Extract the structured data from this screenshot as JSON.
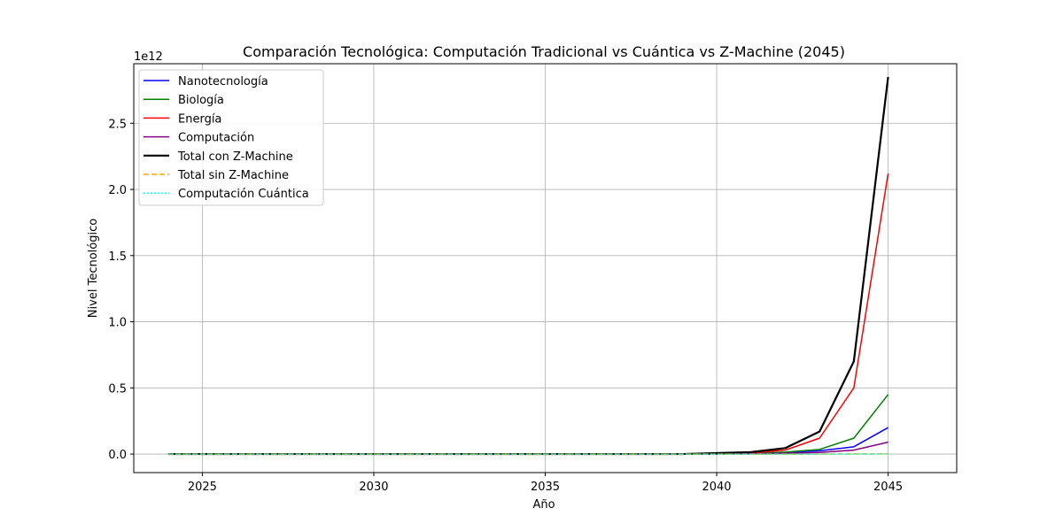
{
  "chart_data": {
    "type": "line",
    "title": "Comparación Tecnológica: Computación Tradicional vs Cuántica vs Z-Machine (2045)",
    "xlabel": "Año",
    "ylabel": "Nivel Tecnológico",
    "y_offset_label": "1e12",
    "xlim": [
      2023,
      2047
    ],
    "ylim": [
      -0.14,
      2.95
    ],
    "y_scale_note": "values in units of 1e12",
    "xticks": [
      2025,
      2030,
      2035,
      2040,
      2045
    ],
    "xtick_labels": [
      "2025",
      "2030",
      "2035",
      "2040",
      "2045"
    ],
    "yticks": [
      0.0,
      0.5,
      1.0,
      1.5,
      2.0,
      2.5
    ],
    "ytick_labels": [
      "0.0",
      "0.5",
      "1.0",
      "1.5",
      "2.0",
      "2.5"
    ],
    "grid": true,
    "legend_position": "upper-left",
    "x": [
      2024,
      2025,
      2026,
      2027,
      2028,
      2029,
      2030,
      2031,
      2032,
      2033,
      2034,
      2035,
      2036,
      2037,
      2038,
      2039,
      2040,
      2041,
      2042,
      2043,
      2044,
      2045
    ],
    "series": [
      {
        "name": "Nanotecnología",
        "color": "#0000ff",
        "dash": "solid",
        "width": 1.5,
        "values": [
          0,
          0,
          0,
          0,
          0,
          0,
          0,
          0,
          0,
          0,
          0,
          0,
          0,
          0,
          0,
          0,
          0.001,
          0.004,
          0.012,
          0.025,
          0.055,
          0.2
        ]
      },
      {
        "name": "Biología",
        "color": "#008000",
        "dash": "solid",
        "width": 1.5,
        "values": [
          0,
          0,
          0,
          0,
          0,
          0,
          0,
          0,
          0,
          0,
          0,
          0,
          0,
          0,
          0,
          0,
          0.002,
          0.006,
          0.015,
          0.035,
          0.12,
          0.45
        ]
      },
      {
        "name": "Energía",
        "color": "#ff0000",
        "dash": "solid",
        "width": 1.5,
        "values": [
          0,
          0,
          0,
          0,
          0,
          0,
          0,
          0,
          0,
          0,
          0,
          0,
          0,
          0,
          0,
          0,
          0.003,
          0.01,
          0.03,
          0.12,
          0.5,
          2.12
        ]
      },
      {
        "name": "Computación",
        "color": "#800080",
        "dash": "solid",
        "width": 1.5,
        "values": [
          0,
          0,
          0,
          0,
          0,
          0,
          0,
          0,
          0,
          0,
          0,
          0,
          0,
          0,
          0,
          0,
          0.001,
          0.002,
          0.006,
          0.012,
          0.03,
          0.09
        ]
      },
      {
        "name": "Total con Z-Machine",
        "color": "#000000",
        "dash": "solid",
        "width": 2.2,
        "values": [
          0,
          0,
          0,
          0,
          0,
          0,
          0,
          0,
          0,
          0,
          0,
          0,
          0,
          0,
          0,
          0,
          0.007,
          0.015,
          0.045,
          0.17,
          0.7,
          2.85
        ]
      },
      {
        "name": "Total sin Z-Machine",
        "color": "#ffa500",
        "dash": "dashed",
        "width": 1.5,
        "values": [
          0,
          0,
          0,
          0,
          0,
          0,
          0,
          0,
          0,
          0,
          0,
          0,
          0,
          0,
          0,
          0,
          0,
          0,
          0,
          0,
          0.001,
          0.002
        ]
      },
      {
        "name": "Computación Cuántica",
        "color": "#00ffff",
        "dash": "dotted",
        "width": 1.5,
        "values": [
          0,
          0,
          0,
          0,
          0,
          0,
          0,
          0,
          0,
          0,
          0,
          0,
          0,
          0,
          0,
          0,
          0,
          0,
          0,
          0,
          0,
          0.001
        ]
      }
    ]
  }
}
